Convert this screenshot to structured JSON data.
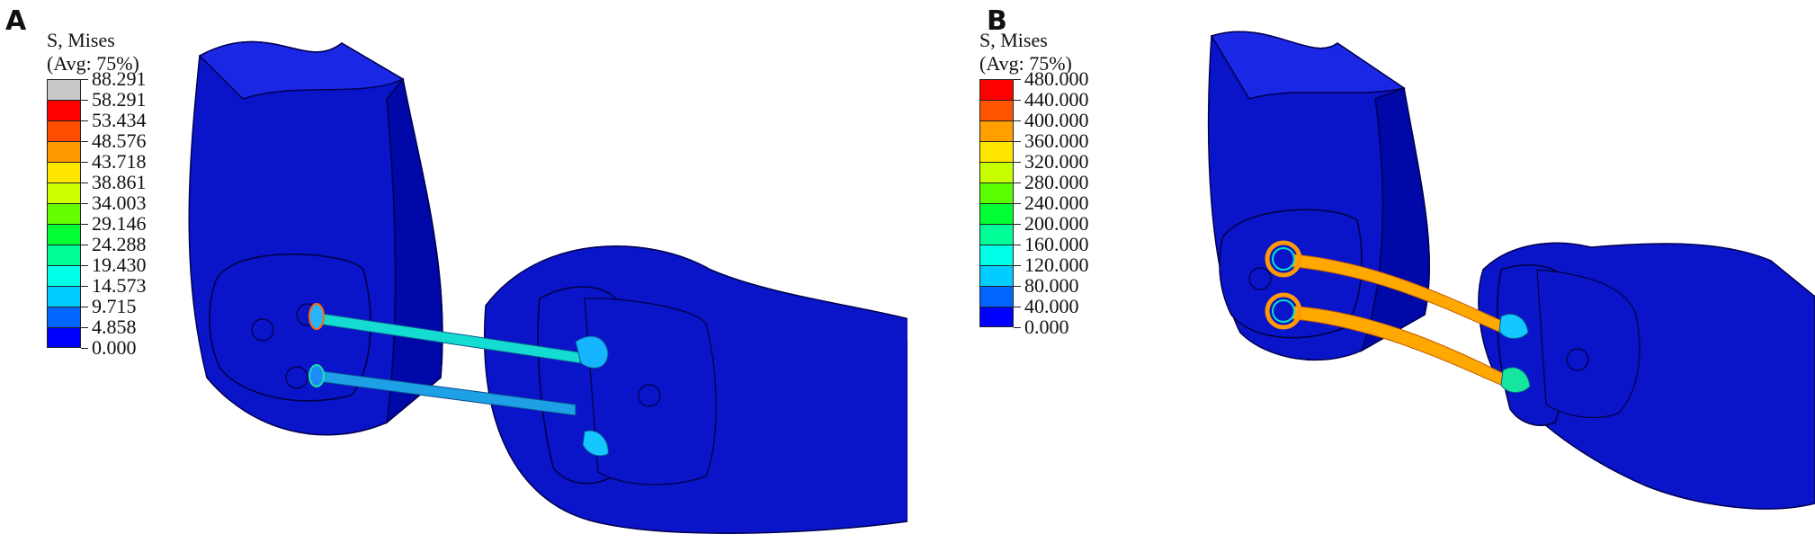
{
  "panels": [
    {
      "letter": "A",
      "legend": {
        "title_line1": "S, Mises",
        "title_line2": "(Avg: 75%)",
        "ticks": [
          "88.291",
          "58.291",
          "53.434",
          "48.576",
          "43.718",
          "38.861",
          "34.003",
          "29.146",
          "24.288",
          "19.430",
          "14.573",
          "9.715",
          "4.858",
          "0.000"
        ],
        "colors": [
          "#c8c8c8",
          "#ff0000",
          "#ff4d00",
          "#ff9900",
          "#ffe600",
          "#ccff00",
          "#66ff00",
          "#00ff33",
          "#00ff99",
          "#00ffe6",
          "#00ccff",
          "#0066ff",
          "#0000ff"
        ]
      }
    },
    {
      "letter": "B",
      "legend": {
        "title_line1": "S, Mises",
        "title_line2": "(Avg: 75%)",
        "ticks": [
          "480.000",
          "440.000",
          "400.000",
          "360.000",
          "320.000",
          "280.000",
          "240.000",
          "200.000",
          "160.000",
          "120.000",
          "80.000",
          "40.000",
          "0.000"
        ],
        "colors": [
          "#ff0000",
          "#ff5500",
          "#ff9f00",
          "#ffe600",
          "#c8ff00",
          "#5cff00",
          "#00ff33",
          "#00ff99",
          "#00ffe6",
          "#00ccff",
          "#0066ff",
          "#0000ff"
        ]
      }
    }
  ]
}
